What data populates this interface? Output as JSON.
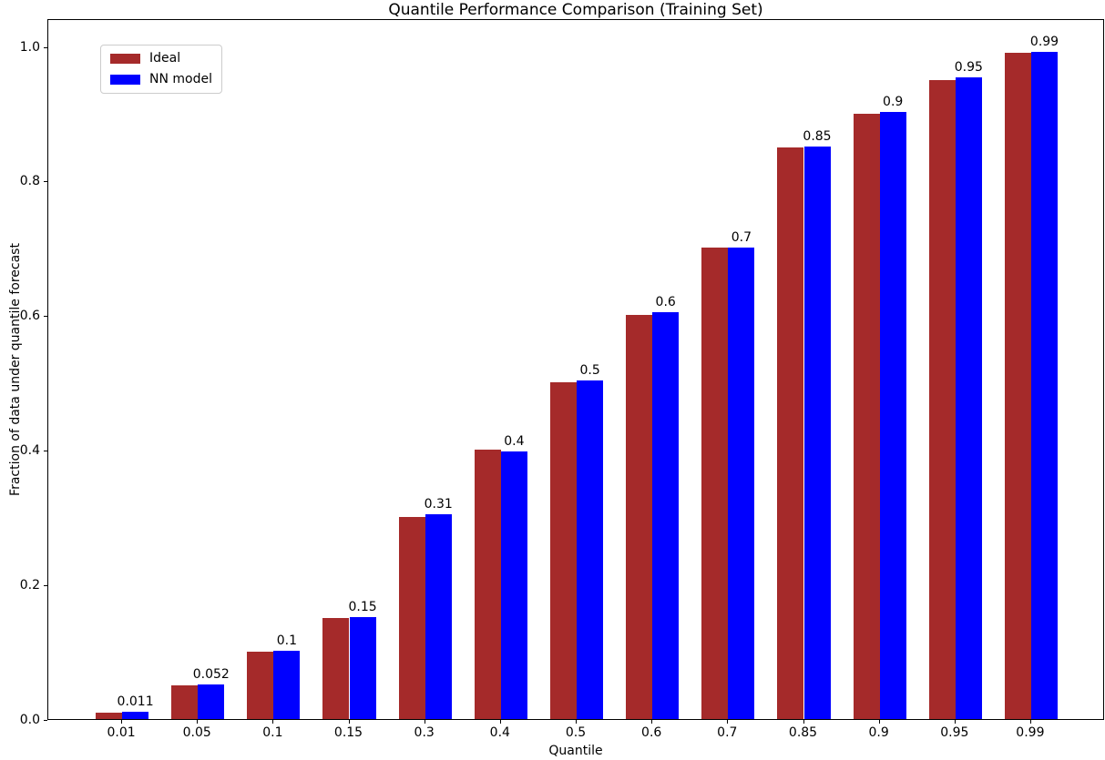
{
  "chart_data": {
    "type": "bar",
    "title": "Quantile Performance Comparison (Training Set)",
    "xlabel": "Quantile",
    "ylabel": "Fraction of data under quantile forecast",
    "categories": [
      "0.01",
      "0.05",
      "0.1",
      "0.15",
      "0.3",
      "0.4",
      "0.5",
      "0.6",
      "0.7",
      "0.85",
      "0.9",
      "0.95",
      "0.99"
    ],
    "series": [
      {
        "name": "Ideal",
        "color": "#a52a2a",
        "values": [
          0.01,
          0.05,
          0.1,
          0.15,
          0.3,
          0.4,
          0.5,
          0.6,
          0.7,
          0.85,
          0.9,
          0.95,
          0.99
        ]
      },
      {
        "name": "NN model",
        "color": "#0000ff",
        "values": [
          0.011,
          0.052,
          0.102,
          0.152,
          0.305,
          0.398,
          0.503,
          0.604,
          0.7,
          0.851,
          0.902,
          0.953,
          0.992
        ]
      }
    ],
    "bar_labels": [
      "0.011",
      "0.052",
      "0.1",
      "0.15",
      "0.31",
      "0.4",
      "0.5",
      "0.6",
      "0.7",
      "0.85",
      "0.9",
      "0.95",
      "0.99"
    ],
    "yticks": [
      "0.0",
      "0.2",
      "0.4",
      "0.6",
      "0.8",
      "1.0"
    ],
    "ylim": [
      0,
      1.0413
    ],
    "legend_position": "upper left",
    "grid": false
  }
}
